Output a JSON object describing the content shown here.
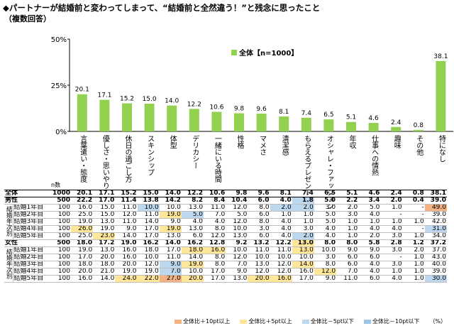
{
  "header": {
    "title": "◆パートナーが結婚前と変わってしまって、“結婚前と全然違う！”と残念に思ったこと",
    "subtitle": "（複数回答）"
  },
  "chart_data": {
    "type": "bar",
    "ylim": [
      0,
      50
    ],
    "yticks": [
      "0%",
      "25%",
      "50%"
    ],
    "n_label": "n数",
    "legend": "全体【n=1000】",
    "categories": [
      "言葉遣い・態度",
      "優しさ・思いやり",
      "休日の過ごし方",
      "スキンシップ",
      "体型",
      "デリカシー",
      "一緒にいる時間",
      "性格",
      "マメさ",
      "清潔感",
      "もらえるプレゼント",
      "オシャレ・ファッション",
      "年収",
      "仕事への情熱",
      "趣味",
      "その他",
      "特になし"
    ],
    "series": [
      {
        "name": "全体【n=1000】",
        "values": [
          20.1,
          17.1,
          15.2,
          15.0,
          14.0,
          12.2,
          10.6,
          9.8,
          9.6,
          8.1,
          7.4,
          6.5,
          5.1,
          4.6,
          2.4,
          0.8,
          38.1
        ]
      }
    ],
    "colors": {
      "bar": "#92d050",
      "high10": "#f4b183",
      "high5": "#ffe699",
      "low5": "#bdd7ee",
      "low10": "#9dc3e6"
    }
  },
  "table": {
    "total": {
      "label": "全体",
      "n": "1000",
      "values": [
        "20.1",
        "17.1",
        "15.2",
        "15.0",
        "14.0",
        "12.2",
        "10.6",
        "9.8",
        "9.6",
        "8.1",
        "7.4",
        "6.5",
        "5.1",
        "4.6",
        "2.4",
        "0.8",
        "38.1"
      ]
    },
    "groups": [
      {
        "label": "結婚年次別",
        "sub": {
          "label": "男性",
          "n": "500",
          "values": [
            "22.2",
            "17.0",
            "11.4",
            "13.8",
            "14.2",
            "8.2",
            "8.4",
            "10.4",
            "6.0",
            "4.0",
            "1.8",
            "5.0",
            "2.2",
            "3.4",
            "2.0",
            "0.4",
            "39.0"
          ],
          "hl": [
            "",
            "",
            "",
            "",
            "",
            "",
            "",
            "",
            "",
            "",
            "l5",
            "",
            "",
            "",
            "",
            "",
            ""
          ]
        },
        "rows": [
          {
            "label": "結婚1年目",
            "n": "100",
            "values": [
              "16.0",
              "15.0",
              "11.0",
              "10.0",
              "10.0",
              "13.0",
              "11.0",
              "12.0",
              "8.0",
              "2.0",
              "2.0",
              "3.0",
              "2.0",
              "5.0",
              "1.0",
              "-",
              "49.0"
            ],
            "hl": [
              "",
              "",
              "",
              "l5",
              "",
              "",
              "",
              "",
              "",
              "l5",
              "l5",
              "",
              "",
              "",
              "",
              "",
              "h10"
            ]
          },
          {
            "label": "結婚2年目",
            "n": "100",
            "values": [
              "25.0",
              "15.0",
              "12.0",
              "11.0",
              "19.0",
              "5.0",
              "7.0",
              "5.0",
              "6.0",
              "1.0",
              "1.0",
              "5.0",
              "3.0",
              "4.0",
              "-",
              "-",
              "39.0"
            ],
            "hl": [
              "",
              "",
              "",
              "",
              "h5",
              "l5",
              "",
              "",
              "",
              "",
              "",
              "",
              "",
              "",
              "",
              "",
              ""
            ]
          },
          {
            "label": "結婚3年目",
            "n": "100",
            "values": [
              "19.0",
              "13.0",
              "11.0",
              "14.0",
              "9.0",
              "4.0",
              "4.0",
              "12.0",
              "8.0",
              "4.0",
              "1.0",
              "5.0",
              "1.0",
              "1.0",
              "1.0",
              "1.0",
              "42.0"
            ],
            "hl": [
              "",
              "",
              "",
              "",
              "",
              "",
              "",
              "",
              "",
              "",
              "",
              "",
              "",
              "",
              "",
              "",
              ""
            ]
          },
          {
            "label": "結婚4年目",
            "n": "100",
            "values": [
              "26.0",
              "19.0",
              "9.0",
              "17.0",
              "19.0",
              "13.0",
              "8.0",
              "10.0",
              "3.0",
              "4.0",
              "3.0",
              "4.0",
              "1.0",
              "4.0",
              "4.0",
              "-",
              "31.0"
            ],
            "hl": [
              "h5",
              "",
              "",
              "",
              "h5",
              "",
              "",
              "",
              "",
              "",
              "",
              "",
              "",
              "",
              "",
              "",
              "l5"
            ]
          },
          {
            "label": "結婚5年目",
            "n": "100",
            "values": [
              "25.0",
              "23.0",
              "14.0",
              "17.0",
              "13.0",
              "6.0",
              "12.0",
              "13.0",
              "6.0",
              "4.0",
              "2.0",
              "4.0",
              "1.0",
              "2.0",
              "3.0",
              "1.0",
              "34.0"
            ],
            "hl": [
              "",
              "h5",
              "",
              "",
              "",
              "",
              "",
              "",
              "",
              "",
              "l5",
              "",
              "",
              "",
              "",
              "",
              ""
            ]
          }
        ]
      },
      {
        "label": "結婚年次別",
        "sub": {
          "label": "女性",
          "n": "500",
          "values": [
            "18.0",
            "17.2",
            "19.0",
            "16.2",
            "14.0",
            "16.2",
            "12.8",
            "9.2",
            "13.2",
            "12.2",
            "13.0",
            "8.0",
            "8.0",
            "5.8",
            "2.8",
            "1.2",
            "37.2"
          ],
          "hl": [
            "",
            "",
            "",
            "",
            "",
            "",
            "",
            "",
            "",
            "",
            "h5",
            "",
            "",
            "",
            "",
            "",
            ""
          ]
        },
        "rows": [
          {
            "label": "結婚1年目",
            "n": "100",
            "values": [
              "19.0",
              "13.0",
              "16.0",
              "18.0",
              "17.0",
              "18.0",
              "16.0",
              "10.0",
              "11.0",
              "11.0",
              "13.0",
              "10.0",
              "9.0",
              "9.0",
              "3.0",
              "2.0",
              "37.0"
            ],
            "hl": [
              "",
              "",
              "",
              "",
              "",
              "h5",
              "h5",
              "",
              "",
              "",
              "h5",
              "",
              "",
              "",
              "",
              "",
              ""
            ]
          },
          {
            "label": "結婚2年目",
            "n": "100",
            "values": [
              "17.0",
              "20.0",
              "16.0",
              "10.0",
              "11.0",
              "14.0",
              "8.0",
              "12.0",
              "10.0",
              "10.0",
              "10.0",
              "3.0",
              "6.0",
              "6.0",
              "-",
              "1.0",
              "43.0"
            ],
            "hl": [
              "",
              "",
              "",
              "",
              "",
              "",
              "",
              "",
              "",
              "",
              "",
              "",
              "",
              "",
              "",
              "",
              ""
            ]
          },
          {
            "label": "結婚3年目",
            "n": "100",
            "values": [
              "18.0",
              "18.0",
              "20.0",
              "12.0",
              "9.0",
              "19.0",
              "8.0",
              "7.0",
              "13.0",
              "12.0",
              "14.0",
              "8.0",
              "6.0",
              "4.0",
              "3.0",
              "1.0",
              "40.0"
            ],
            "hl": [
              "",
              "",
              "",
              "",
              "l5",
              "h5",
              "",
              "",
              "",
              "",
              "h5",
              "",
              "",
              "",
              "",
              "",
              ""
            ]
          },
          {
            "label": "結婚4年目",
            "n": "100",
            "values": [
              "20.0",
              "21.0",
              "19.0",
              "19.0",
              "7.0",
              "10.0",
              "17.0",
              "9.0",
              "12.0",
              "12.0",
              "16.0",
              "12.0",
              "7.0",
              "4.0",
              "1.0",
              "1.0",
              "39.0"
            ],
            "hl": [
              "",
              "",
              "",
              "",
              "l5",
              "",
              "",
              "",
              "",
              "",
              "",
              "h5",
              "",
              "",
              "",
              "",
              ""
            ]
          },
          {
            "label": "結婚5年目",
            "n": "100",
            "values": [
              "16.0",
              "14.0",
              "24.0",
              "22.0",
              "27.0",
              "20.0",
              "17.0",
              "13.0",
              "20.0",
              "16.0",
              "17.0",
              "9.0",
              "11.0",
              "6.0",
              "4.0",
              "1.0",
              "30.0"
            ],
            "hl": [
              "",
              "",
              "h5",
              "h5",
              "h10",
              "h5",
              "",
              "",
              "h5",
              "h5",
              "",
              "",
              "",
              "",
              "",
              "",
              "l5"
            ]
          }
        ]
      }
    ]
  },
  "footer": {
    "items": [
      {
        "label": "全体比＋10pt以上",
        "color": "#f4b183"
      },
      {
        "label": "全体比＋5pt以上",
        "color": "#ffe699"
      },
      {
        "label": "全体比－5pt以下",
        "color": "#bdd7ee"
      },
      {
        "label": "全体比－10pt以下",
        "color": "#9dc3e6"
      }
    ],
    "unit": "（%）"
  }
}
